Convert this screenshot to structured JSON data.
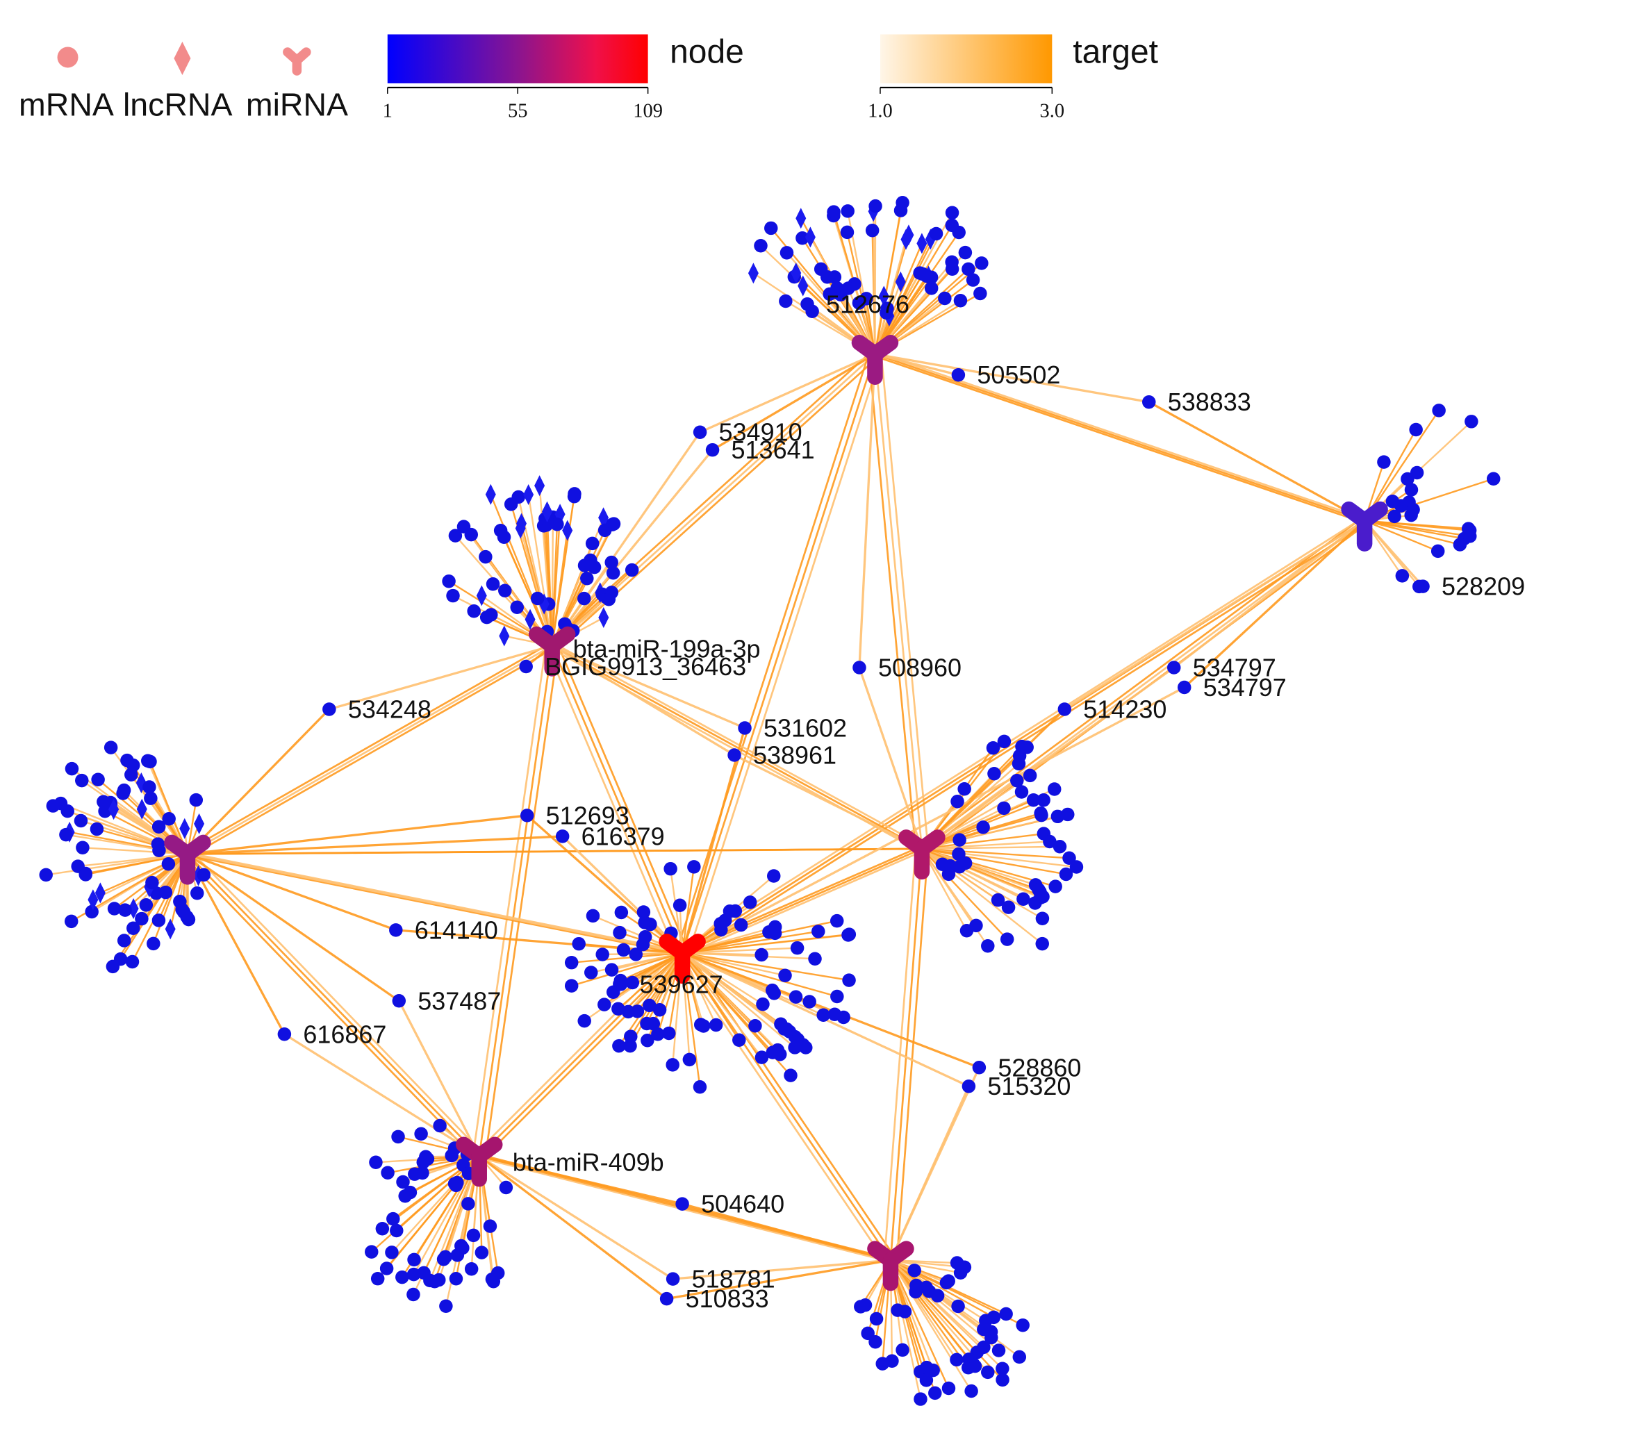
{
  "legend": {
    "shapes": [
      "mRNA",
      "lncRNA",
      "miRNA"
    ],
    "node_scale": {
      "title": "node",
      "ticks": [
        "1",
        "55",
        "109"
      ]
    },
    "target_scale": {
      "title": "target",
      "ticks": [
        "1.0",
        "3.0"
      ]
    }
  },
  "hubs": [
    {
      "label": "bta-miR-199a-3p"
    },
    {
      "label": "bta-miR-409b"
    }
  ],
  "nodes": [
    {
      "label": "538833"
    },
    {
      "label": "534910"
    },
    {
      "label": "513641"
    },
    {
      "label": "508960"
    },
    {
      "label": "534797"
    },
    {
      "label": "534797"
    },
    {
      "label": "514230"
    },
    {
      "label": "534248"
    },
    {
      "label": "512693"
    },
    {
      "label": "537487"
    },
    {
      "label": "616867"
    },
    {
      "label": "504640"
    },
    {
      "label": "518781"
    },
    {
      "label": "510833"
    },
    {
      "label": "515320"
    },
    {
      "label": "528860"
    },
    {
      "label": "528209"
    },
    {
      "label": "539627"
    },
    {
      "label": "531602"
    },
    {
      "label": "538961"
    },
    {
      "label": "BGIG9913_36463"
    },
    {
      "label": "505502"
    },
    {
      "label": "512676"
    },
    {
      "label": "616379"
    },
    {
      "label": "614140"
    }
  ]
}
